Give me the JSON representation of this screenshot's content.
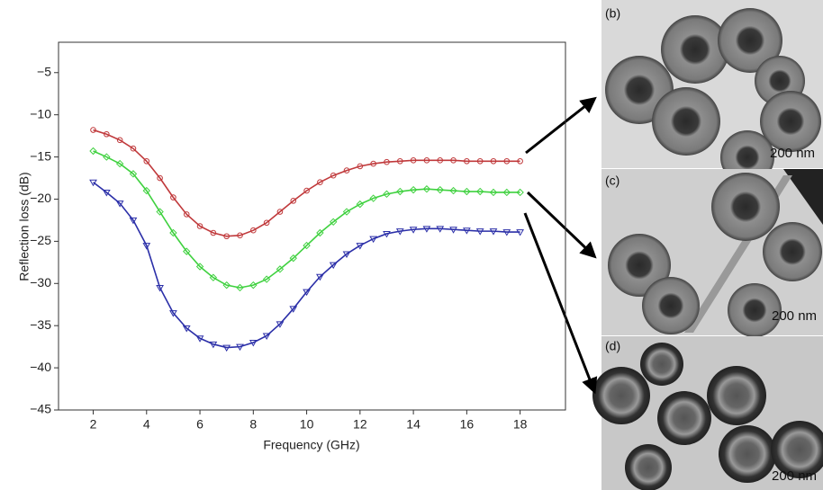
{
  "chart_data": {
    "type": "line",
    "x_label": "Frequency (GHz)",
    "y_label": "Reflection loss (dB)",
    "x": [
      2,
      2.5,
      3,
      3.5,
      4,
      4.5,
      5,
      5.5,
      6,
      6.5,
      7,
      7.5,
      8,
      8.5,
      9,
      9.5,
      10,
      10.5,
      11,
      11.5,
      12,
      12.5,
      13,
      13.5,
      14,
      14.5,
      15,
      15.5,
      16,
      16.5,
      17,
      17.5,
      18
    ],
    "series": [
      {
        "color": "#c0393b",
        "marker": "circle",
        "values": [
          -11.8,
          -12.3,
          -13,
          -14,
          -15.5,
          -17.5,
          -19.8,
          -21.8,
          -23.2,
          -24,
          -24.4,
          -24.3,
          -23.7,
          -22.8,
          -21.5,
          -20.2,
          -19,
          -18,
          -17.2,
          -16.6,
          -16.1,
          -15.8,
          -15.6,
          -15.5,
          -15.4,
          -15.4,
          -15.4,
          -15.4,
          -15.5,
          -15.5,
          -15.5,
          -15.5,
          -15.5
        ]
      },
      {
        "color": "#3fd13f",
        "marker": "diamond",
        "values": [
          -14.3,
          -15,
          -15.8,
          -17,
          -19,
          -21.5,
          -24,
          -26.2,
          -28,
          -29.3,
          -30.2,
          -30.5,
          -30.2,
          -29.5,
          -28.3,
          -27,
          -25.5,
          -24,
          -22.7,
          -21.5,
          -20.6,
          -19.9,
          -19.4,
          -19.1,
          -18.9,
          -18.8,
          -18.9,
          -19,
          -19.1,
          -19.1,
          -19.2,
          -19.2,
          -19.2
        ]
      },
      {
        "color": "#2b2fa8",
        "marker": "triangle-down",
        "values": [
          -18,
          -19.2,
          -20.5,
          -22.5,
          -25.5,
          -30.5,
          -33.5,
          -35.3,
          -36.5,
          -37.2,
          -37.6,
          -37.5,
          -37,
          -36.2,
          -34.8,
          -33,
          -31,
          -29.2,
          -27.8,
          -26.5,
          -25.5,
          -24.7,
          -24.1,
          -23.8,
          -23.6,
          -23.5,
          -23.5,
          -23.6,
          -23.7,
          -23.8,
          -23.8,
          -23.9,
          -23.9
        ]
      }
    ],
    "xlim": [
      0.7,
      19.7
    ],
    "xticks": [
      2,
      4,
      6,
      8,
      10,
      12,
      14,
      16,
      18
    ],
    "ylim": [
      -45,
      -1.4
    ],
    "yticks": [
      {
        "value": -45,
        "label": "−45"
      },
      {
        "value": -40,
        "label": "−40"
      },
      {
        "value": -35,
        "label": "−35"
      },
      {
        "value": -30,
        "label": "−30"
      },
      {
        "value": -25,
        "label": "−25"
      },
      {
        "value": -20,
        "label": "−20"
      },
      {
        "value": -15,
        "label": "−15"
      },
      {
        "value": -10,
        "label": "−10"
      },
      {
        "value": -5,
        "label": "−5"
      }
    ],
    "grid": false
  },
  "panels": [
    {
      "label": "(b)",
      "scale": "200 nm"
    },
    {
      "label": "(c)",
      "scale": "200 nm"
    },
    {
      "label": "(d)",
      "scale": "200 nm"
    }
  ]
}
